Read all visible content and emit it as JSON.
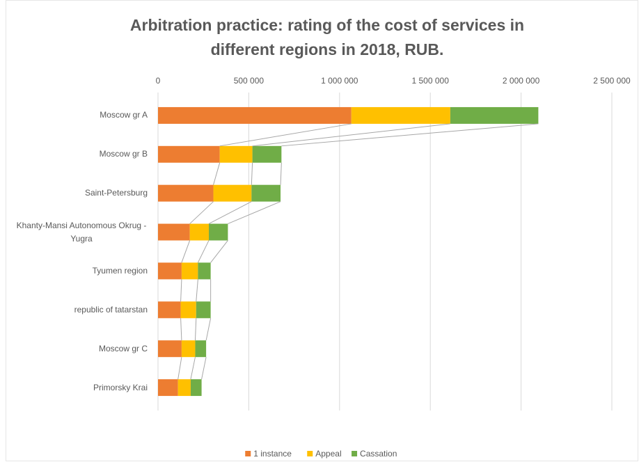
{
  "chart_data": {
    "type": "bar",
    "orientation": "horizontal",
    "stacked": true,
    "title": "Arbitration practice: rating of the cost of services in",
    "subtitle": "different regions in 2018, RUB.",
    "categories": [
      "Moscow gr A",
      "Moscow gr B",
      "Saint-Petersburg",
      "Khanty-Mansi Autonomous Okrug - Yugra",
      "Tyumen region",
      "republic of tatarstan",
      "Moscow gr C",
      "Primorsky Krai"
    ],
    "series": [
      {
        "name": "1 instance",
        "color": "#ed7d31",
        "values": [
          1065000,
          340000,
          305000,
          175000,
          130000,
          125000,
          130000,
          110000
        ]
      },
      {
        "name": "Appeal",
        "color": "#ffc000",
        "values": [
          545000,
          180000,
          210000,
          105000,
          90000,
          85000,
          75000,
          70000
        ]
      },
      {
        "name": "Cassation",
        "color": "#70ad47",
        "values": [
          485000,
          160000,
          160000,
          105000,
          70000,
          80000,
          60000,
          60000
        ]
      }
    ],
    "xlim": [
      0,
      2500000
    ],
    "xticks": [
      0,
      {
        "value": 500000,
        "label": "500 000"
      },
      {
        "value": 1000000,
        "label": "1 000 000"
      },
      {
        "value": 1500000,
        "label": "1 500 000"
      },
      {
        "value": 2000000,
        "label": "2 000 000"
      },
      {
        "value": 2500000,
        "label": "2 500 000"
      }
    ],
    "grid": true,
    "series_lines": true,
    "legend": "bottom"
  }
}
